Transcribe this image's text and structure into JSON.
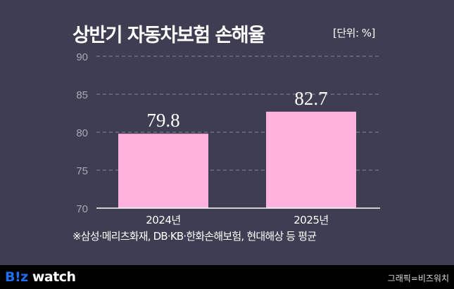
{
  "chart_data": {
    "type": "bar",
    "title": "상반기 자동차보험 손해율",
    "unit_label": "[단위: %]",
    "categories": [
      "2024년",
      "2025년"
    ],
    "values": [
      79.8,
      82.7
    ],
    "value_labels": [
      "79.8",
      "82.7"
    ],
    "ylim": [
      70,
      90
    ],
    "yticks": [
      70,
      75,
      80,
      85,
      90
    ],
    "grid": true,
    "bar_color": "#ffb3dc",
    "note": "※삼성·메리츠화재, DB·KB·한화손해보험, 현대해상 등 평균"
  },
  "footer": {
    "logo_part1": "B!z",
    "logo_part2": " watch",
    "credit": "그래픽=비즈워치"
  }
}
